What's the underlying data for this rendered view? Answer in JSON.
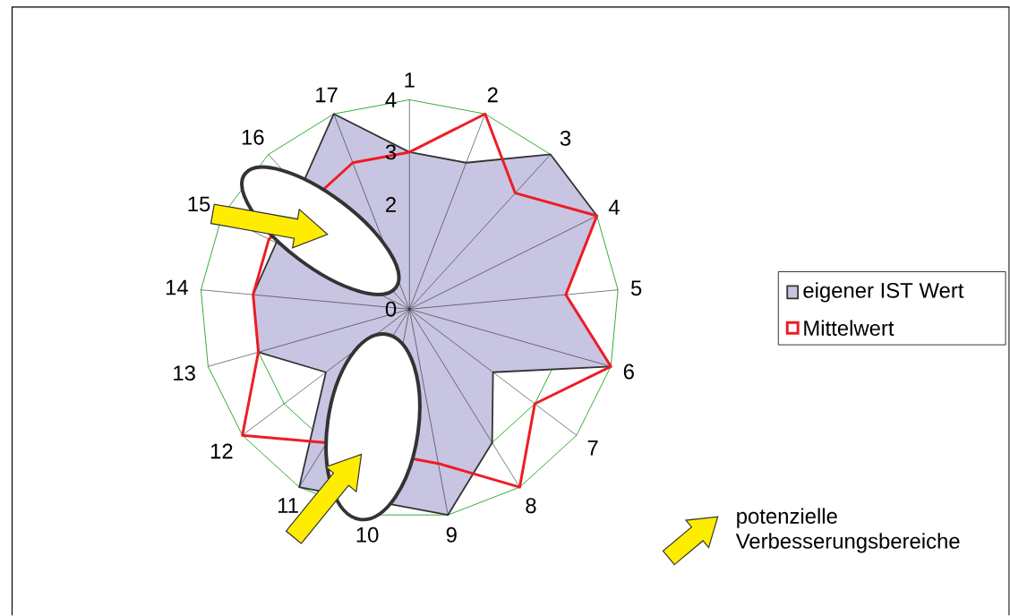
{
  "chart_data": {
    "type": "radar",
    "categories": [
      "1",
      "2",
      "3",
      "4",
      "5",
      "6",
      "7",
      "8",
      "9",
      "10",
      "11",
      "12",
      "13",
      "14",
      "15",
      "16",
      "17"
    ],
    "series": [
      {
        "name": "eigener IST Wert",
        "color": "#c8c5e2",
        "values": [
          3,
          3,
          4,
          4,
          3,
          4,
          2,
          3,
          4,
          null,
          4,
          2,
          3,
          3,
          null,
          null,
          4
        ]
      },
      {
        "name": "Mittelwert",
        "color": "#ee1c25",
        "values": [
          3,
          4,
          3,
          4,
          3,
          4,
          3,
          4,
          3,
          null,
          3,
          4,
          3,
          3,
          3,
          null,
          3
        ]
      }
    ],
    "ylim": [
      0,
      4
    ],
    "yticks": [
      0,
      2,
      3,
      4
    ],
    "grid": true,
    "legend": "right",
    "annotations": [
      "potenzielle Verbesserungsbereiche"
    ]
  }
}
